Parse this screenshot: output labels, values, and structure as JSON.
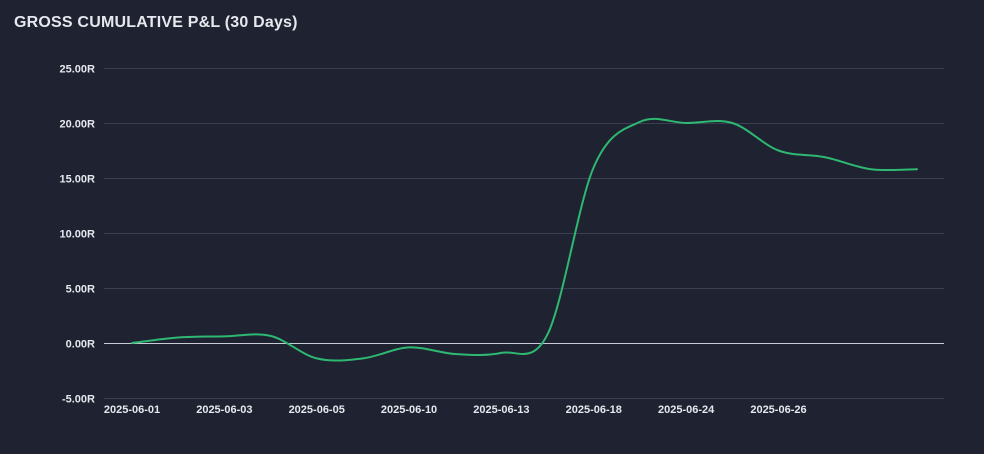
{
  "chart_data": {
    "type": "line",
    "title": "GROSS CUMULATIVE P&L (30 Days)",
    "xlabel": "",
    "ylabel": "",
    "ylim": [
      -5,
      25
    ],
    "y_ticks": [
      -5,
      0,
      5,
      10,
      15,
      20,
      25
    ],
    "y_tick_labels": [
      "-5.00R",
      "0.00R",
      "5.00R",
      "10.00R",
      "15.00R",
      "20.00R",
      "25.00R"
    ],
    "x_tick_labels": [
      "2025-06-01",
      "2025-06-03",
      "2025-06-05",
      "2025-06-10",
      "2025-06-13",
      "2025-06-18",
      "2025-06-24",
      "2025-06-26"
    ],
    "grid": true,
    "x": [
      0,
      1,
      2,
      3,
      4,
      5,
      6,
      7,
      8,
      9,
      10,
      11,
      12,
      13,
      14,
      15,
      16,
      17
    ],
    "x_labels": [
      "2025-06-01",
      "",
      "2025-06-03",
      "",
      "2025-06-05",
      "",
      "2025-06-10",
      "",
      "2025-06-13",
      "",
      "2025-06-18",
      "",
      "2025-06-24",
      "",
      "2025-06-26",
      "",
      "",
      ""
    ],
    "series": [
      {
        "color": "#2eb872",
        "values": [
          0.0,
          0.5,
          0.6,
          0.65,
          -1.4,
          -1.4,
          -0.4,
          -1.0,
          -0.9,
          0.8,
          16.0,
          20.1,
          20.0,
          20.0,
          17.5,
          16.9,
          15.8,
          15.8
        ]
      }
    ]
  },
  "colors": {
    "background": "#1e2231",
    "grid": "#3a3f52",
    "zero_line": "#c9ccd6",
    "series": "#2eb872",
    "text": "#e6e8ee"
  }
}
